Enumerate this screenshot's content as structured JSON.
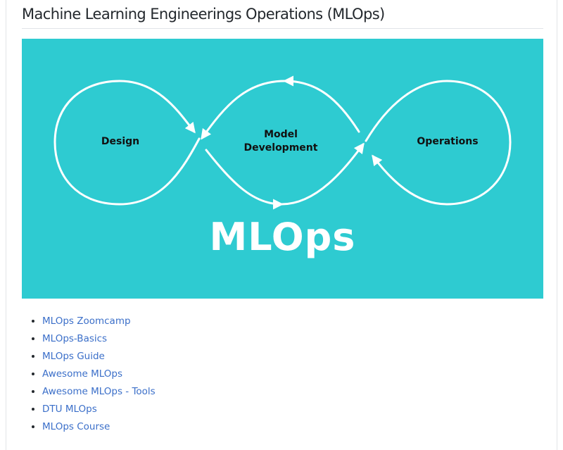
{
  "heading": "Machine Learning Engineerings Operations (MLOps)",
  "banner": {
    "background_color": "#2ecbd1",
    "labels": {
      "design": "Design",
      "model_line1": "Model",
      "model_line2": "Development",
      "operations": "Operations"
    },
    "title": "MLOps"
  },
  "links": [
    {
      "label": "MLOps Zoomcamp"
    },
    {
      "label": "MLOps-Basics"
    },
    {
      "label": "MLOps Guide"
    },
    {
      "label": "Awesome MLOps"
    },
    {
      "label": "Awesome MLOps - Tools"
    },
    {
      "label": "DTU MLOps"
    },
    {
      "label": "MLOps Course"
    }
  ]
}
